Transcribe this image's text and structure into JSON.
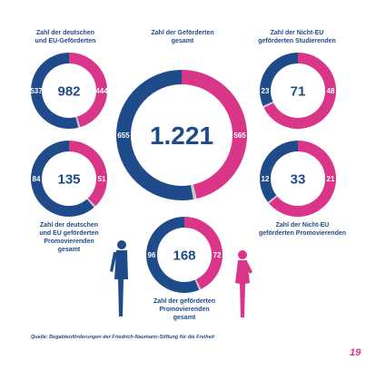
{
  "colors": {
    "blue": "#1f4b8b",
    "pink": "#d9368a",
    "gray": "#c9c9c9"
  },
  "chart_data": [
    {
      "type": "pie",
      "title": "Zahl der deutschen und EU-Geförderten",
      "total_label": "982",
      "series": [
        {
          "name": "",
          "values": [
            537,
            444
          ]
        }
      ]
    },
    {
      "type": "pie",
      "title": "Zahl der Geförderten gesamt",
      "total_label": "1.221",
      "series": [
        {
          "name": "",
          "values": [
            655,
            565
          ]
        }
      ]
    },
    {
      "type": "pie",
      "title": "Zahl der Nicht-EU geförderten Studierenden",
      "total_label": "71",
      "series": [
        {
          "name": "",
          "values": [
            23,
            48
          ]
        }
      ]
    },
    {
      "type": "pie",
      "title": "Zahl der deutschen und EU geförderten Promovierenden gesamt",
      "total_label": "135",
      "series": [
        {
          "name": "",
          "values": [
            84,
            51
          ]
        }
      ]
    },
    {
      "type": "pie",
      "title": "Zahl der Nicht-EU geförderten Promovierenden",
      "total_label": "33",
      "series": [
        {
          "name": "",
          "values": [
            12,
            21
          ]
        }
      ]
    },
    {
      "type": "pie",
      "title": "Zahl der geförderten Promovierenden gesamt",
      "total_label": "168",
      "series": [
        {
          "name": "",
          "values": [
            96,
            72
          ]
        }
      ]
    }
  ],
  "footer": {
    "source": "Quelle: Begabtenförderungen der Friedrich-Naumann-Stiftung für die Freiheit",
    "page_number": "19"
  }
}
